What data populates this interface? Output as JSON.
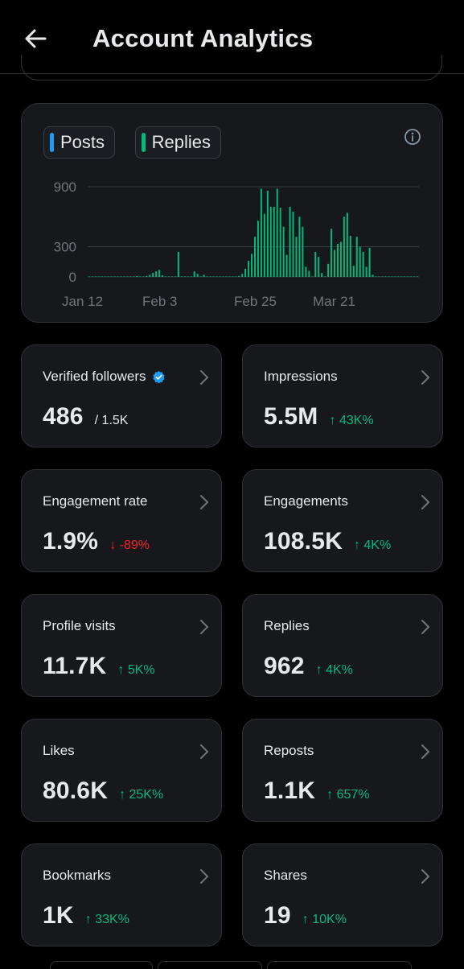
{
  "header": {
    "title": "Account Analytics"
  },
  "legend": {
    "posts": {
      "label": "Posts",
      "color": "#1d9bf0"
    },
    "replies": {
      "label": "Replies",
      "color": "#00ba7c"
    }
  },
  "chart_data": {
    "type": "bar",
    "series": [
      {
        "name": "Replies",
        "values": [
          0,
          0,
          0,
          0,
          0,
          0,
          0,
          0,
          0,
          0,
          1,
          0,
          2,
          0,
          5,
          8,
          3,
          4,
          10,
          20,
          40,
          55,
          70,
          15,
          5,
          0,
          2,
          3,
          250,
          5,
          0,
          0,
          0,
          55,
          30,
          5,
          20,
          0,
          5,
          0,
          0,
          0,
          2,
          0,
          1,
          0,
          5,
          10,
          30,
          80,
          160,
          230,
          400,
          560,
          880,
          630,
          860,
          700,
          700,
          880,
          690,
          500,
          220,
          700,
          650,
          400,
          600,
          500,
          100,
          60,
          0,
          250,
          200,
          40,
          0,
          130,
          480,
          270,
          330,
          350,
          600,
          640,
          410,
          110,
          400,
          300,
          250,
          100,
          290,
          20,
          0,
          0,
          0,
          0,
          0,
          0,
          0,
          0,
          0,
          0,
          0,
          0,
          0,
          0
        ]
      }
    ],
    "x_tick_labels": [
      "Jan 12",
      "Feb 3",
      "Feb 25",
      "Mar 21"
    ],
    "y_tick_labels": [
      "900",
      "300",
      "0"
    ],
    "ylim": [
      0,
      900
    ]
  },
  "metrics": [
    {
      "label": "Verified followers",
      "value": "486",
      "sub": "/ 1.5K",
      "delta": "",
      "trend": "none"
    },
    {
      "label": "Impressions",
      "value": "5.5M",
      "sub": "",
      "delta": "↑ 43K%",
      "trend": "up"
    },
    {
      "label": "Engagement rate",
      "value": "1.9%",
      "sub": "",
      "delta": "↓ -89%",
      "trend": "down"
    },
    {
      "label": "Engagements",
      "value": "108.5K",
      "sub": "",
      "delta": "↑ 4K%",
      "trend": "up"
    },
    {
      "label": "Profile visits",
      "value": "11.7K",
      "sub": "",
      "delta": "↑ 5K%",
      "trend": "up"
    },
    {
      "label": "Replies",
      "value": "962",
      "sub": "",
      "delta": "↑ 4K%",
      "trend": "up"
    },
    {
      "label": "Likes",
      "value": "80.6K",
      "sub": "",
      "delta": "↑ 25K%",
      "trend": "up"
    },
    {
      "label": "Reposts",
      "value": "1.1K",
      "sub": "",
      "delta": "↑ 657%",
      "trend": "up"
    },
    {
      "label": "Bookmarks",
      "value": "1K",
      "sub": "",
      "delta": "↑ 33K%",
      "trend": "up"
    },
    {
      "label": "Shares",
      "value": "19",
      "sub": "",
      "delta": "↑ 10K%",
      "trend": "up"
    }
  ],
  "colors": {
    "background": "#000000",
    "card": "#16181c",
    "border": "#2f3336",
    "up": "#00ba7c",
    "down": "#f4212e",
    "verified": "#1d9bf0"
  }
}
